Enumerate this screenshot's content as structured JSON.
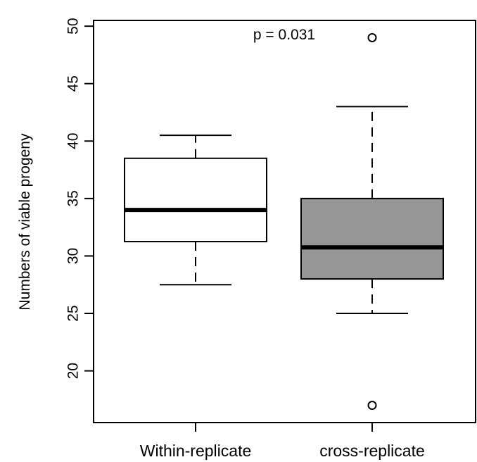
{
  "chart_data": {
    "type": "box",
    "ylabel": "Numbers of viable progeny",
    "ylim": [
      15.5,
      50.5
    ],
    "y_ticks": [
      20,
      25,
      30,
      35,
      40,
      45,
      50
    ],
    "categories": [
      "Within-replicate",
      "cross-replicate"
    ],
    "boxes": [
      {
        "category": "Within-replicate",
        "whisker_low": 27.5,
        "q1": 31.25,
        "median": 34,
        "q3": 38.5,
        "whisker_high": 40.5,
        "outliers": [],
        "fill": "#ffffff"
      },
      {
        "category": "cross-replicate",
        "whisker_low": 25,
        "q1": 28,
        "median": 30.75,
        "q3": 35,
        "whisker_high": 43,
        "outliers": [
          49,
          17
        ],
        "fill": "#969696"
      }
    ],
    "annotation": "p = 0.031",
    "grid": false
  }
}
